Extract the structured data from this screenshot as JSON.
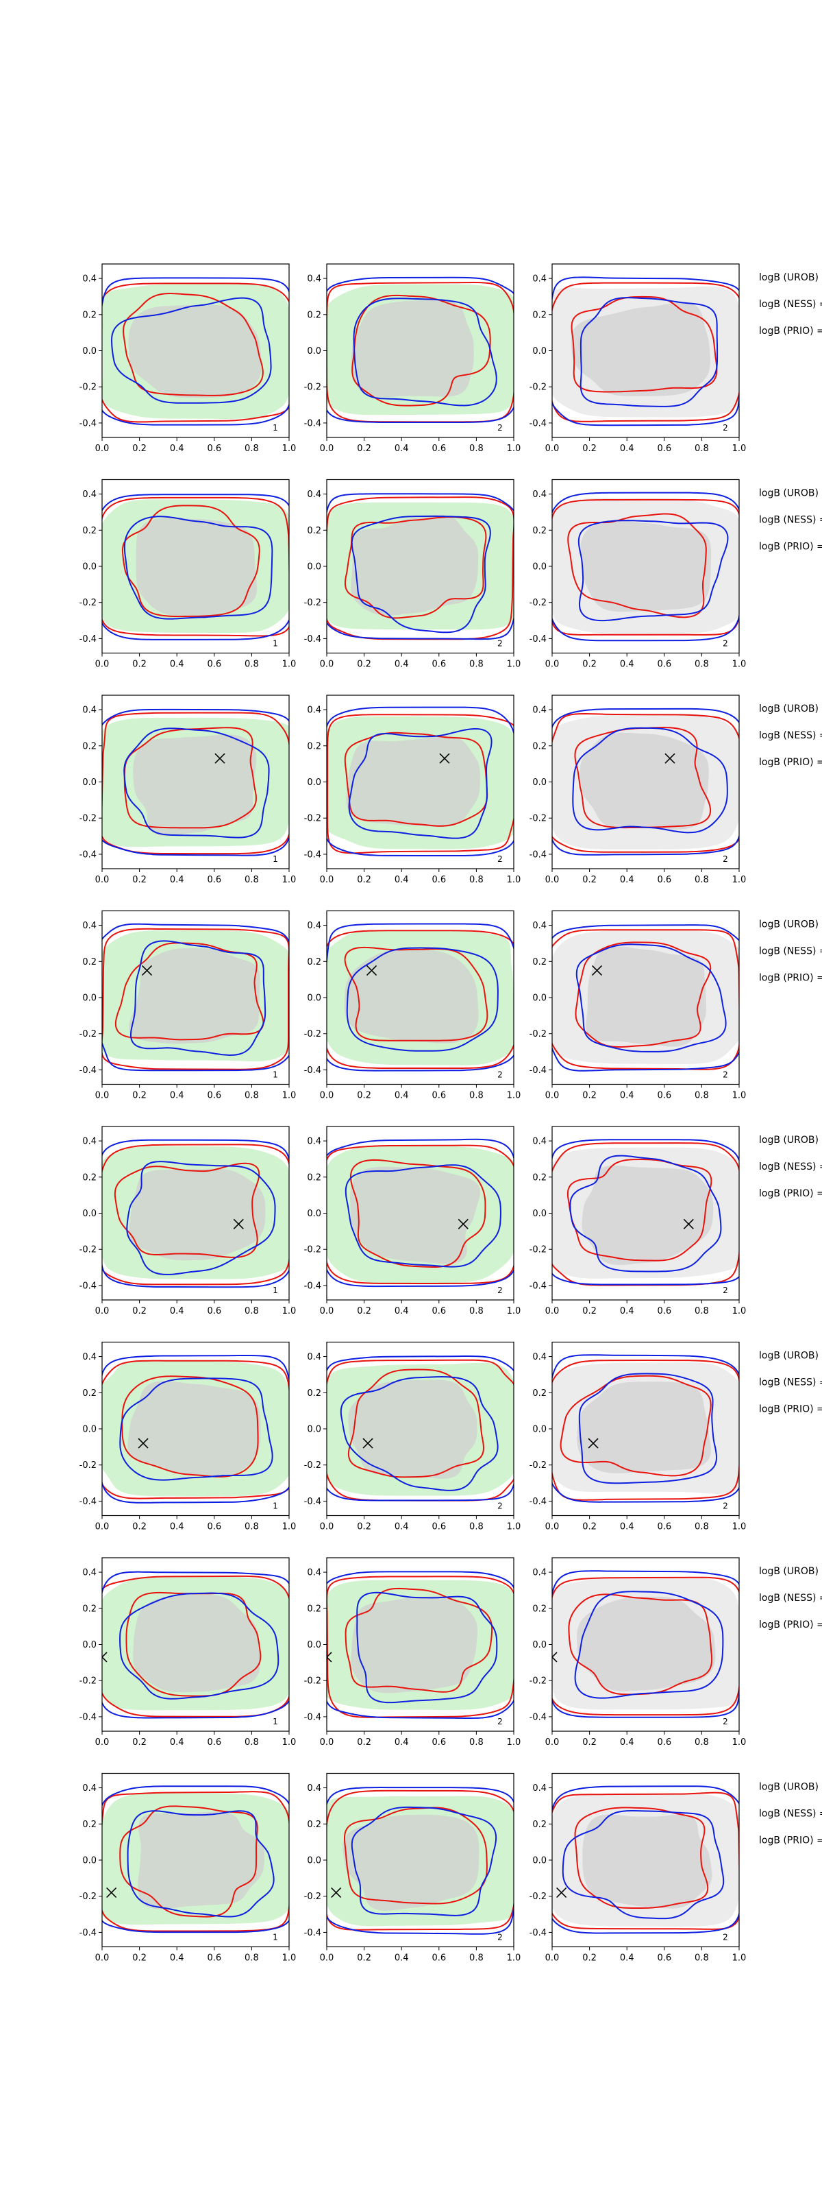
{
  "figure": {
    "background": "#ffffff",
    "colors": {
      "red_contour": "#e8130d",
      "blue_contour": "#0d1fe0",
      "green_fill": "#d2f3d0",
      "green_fill_inner": "#bfe9bc",
      "gray_fill": "#ececec",
      "gray_fill_inner": "#d8d8d8",
      "gray_overlay": "#cfcfcf",
      "axis_color": "#000000",
      "marker_color": "#000000"
    }
  },
  "chart_data": {
    "type": "contour-grid",
    "rows": 8,
    "columns": 3,
    "x_ticks": [
      "0.0",
      "0.2",
      "0.4",
      "0.6",
      "0.8",
      "1.0"
    ],
    "y_ticks": [
      "0.4",
      "0.2",
      "0.0",
      "-0.2",
      "-0.4"
    ],
    "xlim": [
      0,
      1
    ],
    "ylim": [
      -0.48,
      0.48
    ],
    "panel_labels": [
      "1",
      "2",
      "2"
    ],
    "panel_backgrounds": [
      "green",
      "green",
      "gray"
    ],
    "side_labels": [
      "logB (UROB) =",
      "logB (NESS) =",
      "logB (PRIO) ="
    ],
    "markers": [
      null,
      null,
      {
        "x": 0.63,
        "y": 0.13
      },
      {
        "x": 0.24,
        "y": 0.15
      },
      {
        "x": 0.73,
        "y": -0.06
      },
      {
        "x": 0.22,
        "y": -0.08
      },
      {
        "x": 0.0,
        "y": -0.07
      },
      {
        "x": 0.05,
        "y": -0.18
      }
    ]
  }
}
